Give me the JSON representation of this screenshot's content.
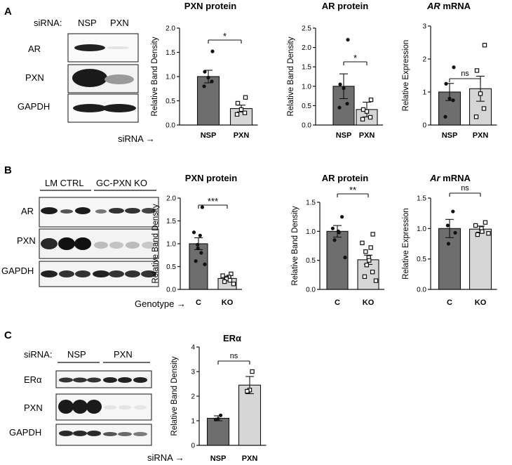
{
  "panels": [
    {
      "letter": "A",
      "blot": {
        "header": "siRNA:",
        "groups": [
          "NSP",
          "PXN"
        ],
        "rows": [
          "AR",
          "PXN",
          "GAPDH"
        ]
      },
      "x_caption": "siRNA →"
    },
    {
      "letter": "B",
      "blot": {
        "header": "",
        "groups": [
          "LM CTRL",
          "GC-PXN KO"
        ],
        "rows": [
          "AR",
          "PXN",
          "GAPDH"
        ]
      },
      "x_caption": "Genotype →"
    },
    {
      "letter": "C",
      "blot": {
        "header": "siRNA:",
        "groups": [
          "NSP",
          "PXN"
        ],
        "rows": [
          "ERα",
          "PXN",
          "GAPDH"
        ]
      },
      "x_caption": "siRNA →"
    }
  ],
  "colors": {
    "dark_bar": "#6e6e6e",
    "light_bar": "#d6d6d6",
    "points": "#111111"
  },
  "chart_data": [
    {
      "id": "A1",
      "type": "bar",
      "title": "PXN protein",
      "ylabel": "Relative  Band  Density",
      "ylim": [
        0,
        2.0
      ],
      "yticks": [
        "0.0",
        "0.5",
        "1.0",
        "1.5",
        "2.0"
      ],
      "categories": [
        "NSP",
        "PXN"
      ],
      "values": [
        1.0,
        0.34
      ],
      "errors": [
        0.13,
        0.07
      ],
      "points": [
        [
          1.52,
          1.1,
          0.98,
          0.9,
          0.8
        ],
        [
          0.57,
          0.45,
          0.32,
          0.25,
          0.22
        ]
      ],
      "significance": "*"
    },
    {
      "id": "A2",
      "type": "bar",
      "title": "AR protein",
      "ylabel": "Relative  Band  Density",
      "ylim": [
        0,
        2.5
      ],
      "yticks": [
        "0.0",
        "0.5",
        "1.0",
        "1.5",
        "2.0",
        "2.5"
      ],
      "categories": [
        "NSP",
        "PXN"
      ],
      "values": [
        1.0,
        0.4
      ],
      "errors": [
        0.32,
        0.19
      ],
      "points": [
        [
          2.2,
          1.05,
          0.95,
          0.55,
          0.45
        ],
        [
          0.65,
          0.4,
          0.35,
          0.2,
          0.15
        ]
      ],
      "significance": "*"
    },
    {
      "id": "A3",
      "type": "bar",
      "title": "AR",
      "title_suffix": " mRNA",
      "ylabel": "Relative  Expression",
      "ylim": [
        0,
        3
      ],
      "yticks": [
        "0",
        "1",
        "2",
        "3"
      ],
      "categories": [
        "NSP",
        "PXN"
      ],
      "values": [
        1.0,
        1.1
      ],
      "errors": [
        0.26,
        0.38
      ],
      "points": [
        [
          1.75,
          1.25,
          0.8,
          0.75,
          0.25
        ],
        [
          2.42,
          1.65,
          0.95,
          0.5,
          0.25
        ]
      ],
      "significance": "ns"
    },
    {
      "id": "B1",
      "type": "bar",
      "title": "PXN protein",
      "ylabel": "Relative  Band  Density",
      "ylim": [
        0,
        2.0
      ],
      "yticks": [
        "0.0",
        "0.5",
        "1.0",
        "1.5",
        "2.0"
      ],
      "categories": [
        "C",
        "KO"
      ],
      "values": [
        1.0,
        0.24
      ],
      "errors": [
        0.13,
        0.03
      ],
      "points": [
        [
          1.8,
          1.25,
          1.18,
          0.98,
          0.9,
          0.8,
          0.62,
          0.55
        ],
        [
          0.34,
          0.3,
          0.27,
          0.25,
          0.23,
          0.2,
          0.17,
          0.12
        ]
      ],
      "significance": "***"
    },
    {
      "id": "B2",
      "type": "bar",
      "title": "AR protein",
      "ylabel": "Relative  Band  Density",
      "ylim": [
        0,
        1.5
      ],
      "yticks": [
        "0.0",
        "0.5",
        "1.0",
        "1.5"
      ],
      "categories": [
        "C",
        "KO"
      ],
      "values": [
        1.0,
        0.51
      ],
      "errors": [
        0.1,
        0.08
      ],
      "points": [
        [
          1.25,
          1.05,
          1.0,
          0.98,
          0.85,
          0.55
        ],
        [
          0.95,
          0.8,
          0.72,
          0.65,
          0.55,
          0.5,
          0.42,
          0.3,
          0.22,
          0.15
        ]
      ],
      "significance": "**"
    },
    {
      "id": "B3",
      "type": "bar",
      "title": "Ar",
      "title_suffix": " mRNA",
      "ylabel": "Relative  Expression",
      "ylim": [
        0,
        1.5
      ],
      "yticks": [
        "0.0",
        "0.5",
        "1.0",
        "1.5"
      ],
      "categories": [
        "C",
        "KO"
      ],
      "values": [
        1.0,
        0.99
      ],
      "errors": [
        0.15,
        0.05
      ],
      "points": [
        [
          1.28,
          1.05,
          0.75,
          0.93
        ],
        [
          1.1,
          1.05,
          1.0,
          0.95,
          0.9,
          0.92
        ]
      ],
      "significance": "ns"
    },
    {
      "id": "C1",
      "type": "bar",
      "title": "ERα",
      "ylabel": "Relative Band Density",
      "ylim": [
        0,
        4
      ],
      "yticks": [
        "0",
        "1",
        "2",
        "3",
        "4"
      ],
      "categories": [
        "NSP",
        "PXN"
      ],
      "values": [
        1.1,
        2.45
      ],
      "errors": [
        0.1,
        0.35
      ],
      "points": [
        [
          1.22,
          1.08,
          1.05
        ],
        [
          3.0,
          2.25,
          2.2
        ]
      ],
      "significance": "ns"
    }
  ]
}
